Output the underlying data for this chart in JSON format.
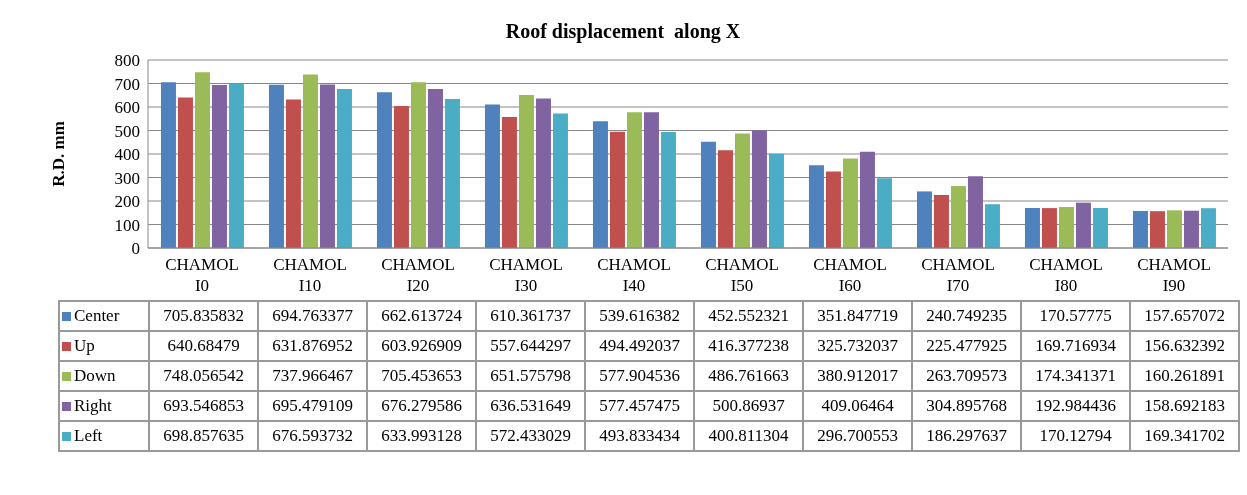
{
  "chart_data": {
    "type": "bar",
    "title": "Roof displacement  along X",
    "ylabel": "R.D. mm",
    "categories": [
      "CHAMOL I0",
      "CHAMOL I10",
      "CHAMOL I20",
      "CHAMOL I30",
      "CHAMOL I40",
      "CHAMOL I50",
      "CHAMOL I60",
      "CHAMOL I70",
      "CHAMOL I80",
      "CHAMOL I90"
    ],
    "series": [
      {
        "name": "Center",
        "color": "#4f81bd",
        "values": [
          705.835832,
          694.763377,
          662.613724,
          610.361737,
          539.616382,
          452.552321,
          351.847719,
          240.749235,
          170.57775,
          157.657072
        ]
      },
      {
        "name": "Up",
        "color": "#c0504d",
        "values": [
          640.68479,
          631.876952,
          603.926909,
          557.644297,
          494.492037,
          416.377238,
          325.732037,
          225.477925,
          169.716934,
          156.632392
        ]
      },
      {
        "name": "Down",
        "color": "#9bbb59",
        "values": [
          748.056542,
          737.966467,
          705.453653,
          651.575798,
          577.904536,
          486.761663,
          380.912017,
          263.709573,
          174.341371,
          160.261891
        ]
      },
      {
        "name": "Right",
        "color": "#8064a2",
        "values": [
          693.546853,
          695.479109,
          676.279586,
          636.531649,
          577.457475,
          500.86937,
          409.06464,
          304.895768,
          192.984436,
          158.692183
        ]
      },
      {
        "name": "Left",
        "color": "#4bacc6",
        "values": [
          698.857635,
          676.593732,
          633.993128,
          572.433029,
          493.833434,
          400.811304,
          296.700553,
          186.297637,
          170.12794,
          169.341702
        ]
      }
    ],
    "ylim": [
      0,
      800
    ],
    "yticks": [
      0,
      100,
      200,
      300,
      400,
      500,
      600,
      700,
      800
    ],
    "grid": "y",
    "legend": "bottom",
    "data_labels": true
  }
}
